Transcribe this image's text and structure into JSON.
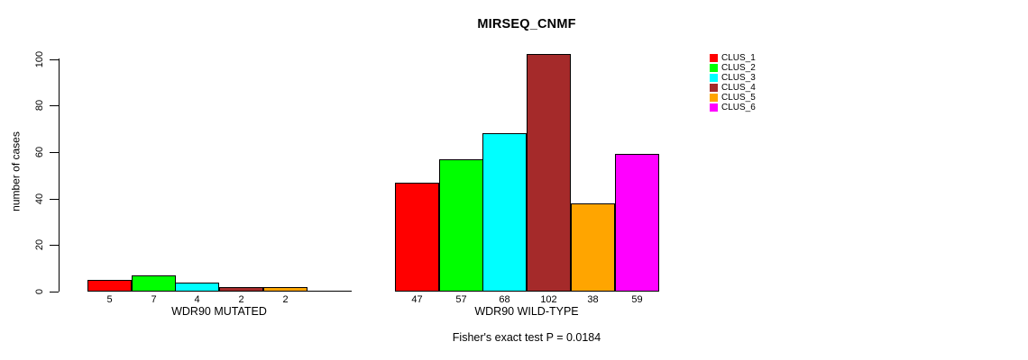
{
  "title": "MIRSEQ_CNMF",
  "y_axis": {
    "label": "number of cases",
    "ticks": [
      0,
      20,
      40,
      60,
      80,
      100
    ]
  },
  "footnote": "Fisher's exact test P = 0.0184",
  "chart_data": {
    "type": "bar",
    "title": "MIRSEQ_CNMF",
    "ylabel": "number of cases",
    "ylim": [
      0,
      100
    ],
    "grid": false,
    "legend_position": "right",
    "legend": [
      {
        "name": "CLUS_1",
        "color": "#ff0000"
      },
      {
        "name": "CLUS_2",
        "color": "#00ff00"
      },
      {
        "name": "CLUS_3",
        "color": "#00ffff"
      },
      {
        "name": "CLUS_4",
        "color": "#a52a2a"
      },
      {
        "name": "CLUS_5",
        "color": "#ffa500"
      },
      {
        "name": "CLUS_6",
        "color": "#ff00ff"
      }
    ],
    "groups": [
      {
        "label": "WDR90 MUTATED",
        "values": [
          5,
          7,
          4,
          2,
          2,
          0
        ],
        "bar_labels": [
          "5",
          "7",
          "4",
          "2",
          "2",
          ""
        ]
      },
      {
        "label": "WDR90 WILD-TYPE",
        "values": [
          47,
          57,
          68,
          102,
          38,
          59
        ],
        "bar_labels": [
          "47",
          "57",
          "68",
          "102",
          "38",
          "59"
        ]
      }
    ],
    "annotation": "Fisher's exact test P = 0.0184"
  }
}
